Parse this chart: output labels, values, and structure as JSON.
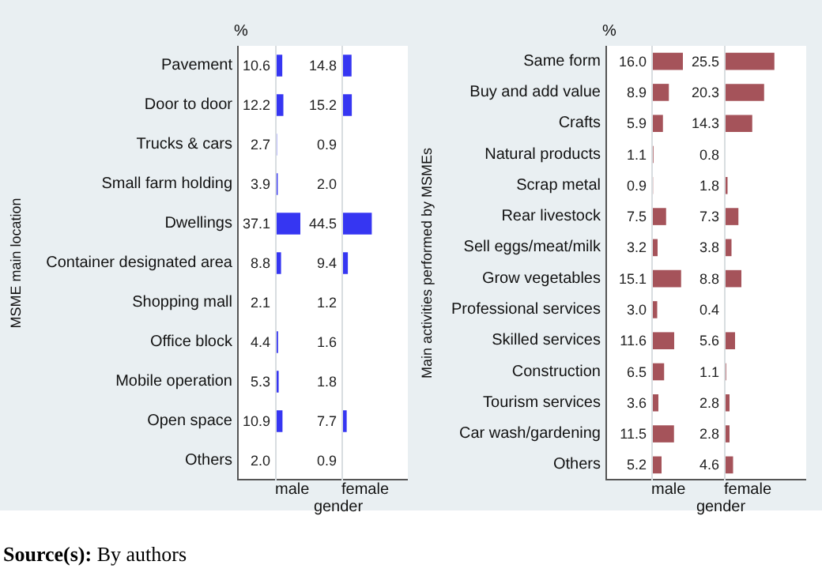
{
  "chart_data": [
    {
      "type": "bar",
      "orientation": "horizontal",
      "xlabel": "male",
      "ylabel": "MSME main location",
      "annotations": [
        "%",
        "gender",
        "Source(s): By authors"
      ],
      "tick_labels": "y",
      "color": "#3636f2",
      "categories": [
        "Pavement",
        "Door to door",
        "Trucks & cars",
        "Small farm holding",
        "Dwellings",
        "Container designated area",
        "Shopping mall",
        "Office block",
        "Mobile operation",
        "Open space",
        "Others"
      ],
      "values": [
        10.6,
        12.2,
        2.7,
        3.9,
        37.1,
        8.8,
        2.1,
        4.4,
        5.3,
        10.9,
        2.0
      ],
      "value_labels": [
        "10.6",
        "12.2",
        "2.7",
        "3.9",
        "37.1",
        "8.8",
        "2.1",
        "4.4",
        "5.3",
        "10.9",
        "2.0"
      ]
    },
    {
      "type": "bar",
      "orientation": "horizontal",
      "xlabel": "female",
      "tick_labels": false,
      "color": "#3636f2",
      "categories": [
        null,
        null,
        null,
        null,
        null,
        null,
        null,
        null,
        null,
        null,
        null
      ],
      "values": [
        14.8,
        15.2,
        0.9,
        2.0,
        44.5,
        9.4,
        1.2,
        1.6,
        1.8,
        7.7,
        0.9
      ],
      "value_labels": [
        "14.8",
        "15.2",
        "0.9",
        "2.0",
        "44.5",
        "9.4",
        "1.2",
        "1.6",
        "1.8",
        "7.7",
        "0.9"
      ]
    },
    {
      "type": "bar",
      "orientation": "horizontal",
      "xlabel": "male",
      "ylabel": "Main activities performed by MSMEs",
      "annotations": [
        "%",
        "gender"
      ],
      "tick_labels": "y",
      "color": "#a5535a",
      "categories": [
        "Same form",
        "Buy and add value",
        "Crafts",
        "Natural products",
        "Scrap metal",
        "Rear livestock",
        "Sell eggs/meat/milk",
        "Grow vegetables",
        "Professional services",
        "Skilled services",
        "Construction",
        "Tourism services",
        "Car wash/gardening",
        "Others"
      ],
      "values": [
        16.0,
        8.9,
        5.9,
        1.1,
        0.9,
        7.5,
        3.2,
        15.1,
        3.0,
        11.6,
        6.5,
        3.6,
        11.5,
        5.2
      ],
      "value_labels": [
        "16.0",
        "8.9",
        "5.9",
        "1.1",
        "0.9",
        "7.5",
        "3.2",
        "15.1",
        "3.0",
        "11.6",
        "6.5",
        "3.6",
        "11.5",
        "5.2"
      ]
    },
    {
      "type": "bar",
      "orientation": "horizontal",
      "xlabel": "female",
      "tick_labels": false,
      "color": "#a5535a",
      "categories": [
        null,
        null,
        null,
        null,
        null,
        null,
        null,
        null,
        null,
        null,
        null,
        null,
        null,
        null
      ],
      "values": [
        25.5,
        20.3,
        14.3,
        0.8,
        1.8,
        7.3,
        3.8,
        8.8,
        0.4,
        5.6,
        1.1,
        2.8,
        2.8,
        4.6
      ],
      "value_labels": [
        "25.5",
        "20.3",
        "14.3",
        "0.8",
        "1.8",
        "7.3",
        "3.8",
        "8.8",
        "0.4",
        "5.6",
        "1.1",
        "2.8",
        "2.8",
        "4.6"
      ]
    }
  ]
}
